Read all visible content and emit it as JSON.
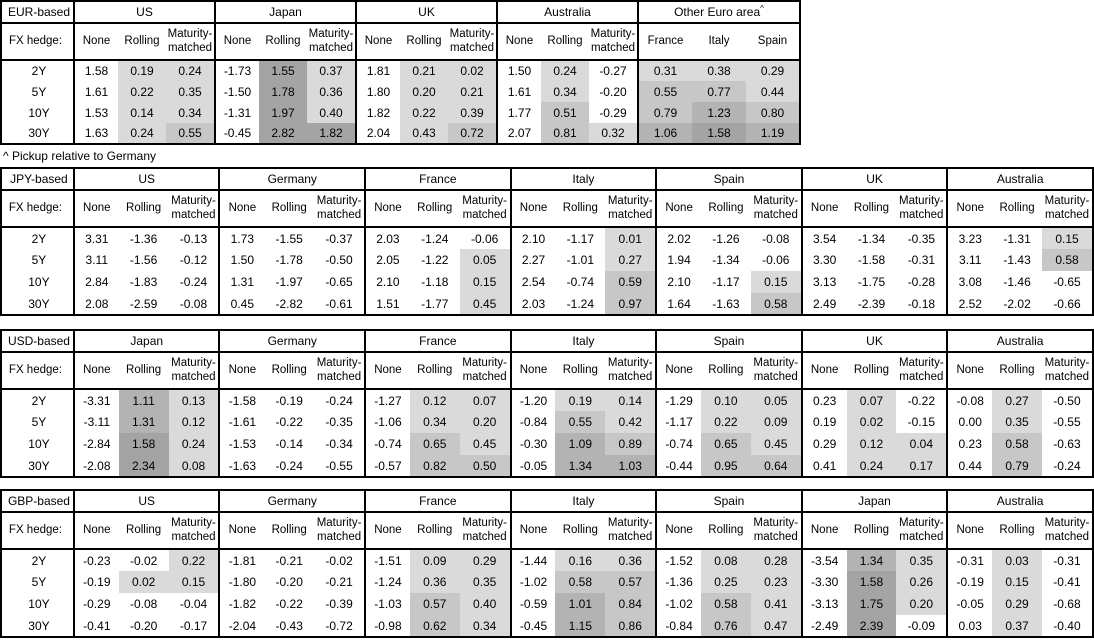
{
  "labels": {
    "fx_hedge": "FX hedge:",
    "hedge_cols": [
      "None",
      "Rolling",
      "Maturity-matched"
    ],
    "row_labels": [
      "2Y",
      "5Y",
      "10Y",
      "30Y"
    ],
    "footnote": "^ Pickup relative to Germany"
  },
  "shade_colors": {
    "l1": "#dadada",
    "l2": "#c7c7c7",
    "l3": "#b3b3b3",
    "l4": "#a4a4a4"
  },
  "shade_thresholds": [
    0,
    0.5,
    1.0,
    1.5
  ],
  "tables": [
    {
      "base": "EUR-based",
      "groups": [
        {
          "name": "US",
          "rows": [
            [
              "1.58",
              "0.19",
              "0.24"
            ],
            [
              "1.61",
              "0.22",
              "0.35"
            ],
            [
              "1.53",
              "0.14",
              "0.34"
            ],
            [
              "1.63",
              "0.24",
              "0.55"
            ]
          ]
        },
        {
          "name": "Japan",
          "rows": [
            [
              "-1.73",
              "1.55",
              "0.37"
            ],
            [
              "-1.50",
              "1.78",
              "0.36"
            ],
            [
              "-1.31",
              "1.97",
              "0.40"
            ],
            [
              "-0.45",
              "2.82",
              "1.82"
            ]
          ]
        },
        {
          "name": "UK",
          "rows": [
            [
              "1.81",
              "0.21",
              "0.02"
            ],
            [
              "1.80",
              "0.20",
              "0.21"
            ],
            [
              "1.82",
              "0.22",
              "0.39"
            ],
            [
              "2.04",
              "0.43",
              "0.72"
            ]
          ]
        },
        {
          "name": "Australia",
          "rows": [
            [
              "1.50",
              "0.24",
              "-0.27"
            ],
            [
              "1.61",
              "0.34",
              "-0.20"
            ],
            [
              "1.77",
              "0.51",
              "-0.29"
            ],
            [
              "2.07",
              "0.81",
              "0.32"
            ]
          ]
        },
        {
          "name": "Other Euro area",
          "footnote_mark": "^",
          "cols": [
            "France",
            "Italy",
            "Spain"
          ],
          "shade_all": true,
          "rows": [
            [
              "0.31",
              "0.38",
              "0.29"
            ],
            [
              "0.55",
              "0.77",
              "0.44"
            ],
            [
              "0.79",
              "1.23",
              "0.80"
            ],
            [
              "1.06",
              "1.58",
              "1.19"
            ]
          ]
        }
      ]
    },
    {
      "base": "JPY-based",
      "groups": [
        {
          "name": "US",
          "rows": [
            [
              "3.31",
              "-1.36",
              "-0.13"
            ],
            [
              "3.11",
              "-1.56",
              "-0.12"
            ],
            [
              "2.84",
              "-1.83",
              "-0.24"
            ],
            [
              "2.08",
              "-2.59",
              "-0.08"
            ]
          ]
        },
        {
          "name": "Germany",
          "rows": [
            [
              "1.73",
              "-1.55",
              "-0.37"
            ],
            [
              "1.50",
              "-1.78",
              "-0.50"
            ],
            [
              "1.31",
              "-1.97",
              "-0.65"
            ],
            [
              "0.45",
              "-2.82",
              "-0.61"
            ]
          ]
        },
        {
          "name": "France",
          "rows": [
            [
              "2.03",
              "-1.24",
              "-0.06"
            ],
            [
              "2.05",
              "-1.22",
              "0.05"
            ],
            [
              "2.10",
              "-1.18",
              "0.15"
            ],
            [
              "1.51",
              "-1.77",
              "0.45"
            ]
          ]
        },
        {
          "name": "Italy",
          "rows": [
            [
              "2.10",
              "-1.17",
              "0.01"
            ],
            [
              "2.27",
              "-1.01",
              "0.27"
            ],
            [
              "2.54",
              "-0.74",
              "0.59"
            ],
            [
              "2.03",
              "-1.24",
              "0.97"
            ]
          ]
        },
        {
          "name": "Spain",
          "rows": [
            [
              "2.02",
              "-1.26",
              "-0.08"
            ],
            [
              "1.94",
              "-1.34",
              "-0.06"
            ],
            [
              "2.10",
              "-1.17",
              "0.15"
            ],
            [
              "1.64",
              "-1.63",
              "0.58"
            ]
          ]
        },
        {
          "name": "UK",
          "rows": [
            [
              "3.54",
              "-1.34",
              "-0.35"
            ],
            [
              "3.30",
              "-1.58",
              "-0.31"
            ],
            [
              "3.13",
              "-1.75",
              "-0.28"
            ],
            [
              "2.49",
              "-2.39",
              "-0.18"
            ]
          ]
        },
        {
          "name": "Australia",
          "rows": [
            [
              "3.23",
              "-1.31",
              "0.15"
            ],
            [
              "3.11",
              "-1.43",
              "0.58"
            ],
            [
              "3.08",
              "-1.46",
              "-0.65"
            ],
            [
              "2.52",
              "-2.02",
              "-0.66"
            ]
          ]
        }
      ]
    },
    {
      "base": "USD-based",
      "groups": [
        {
          "name": "Japan",
          "rows": [
            [
              "-3.31",
              "1.11",
              "0.13"
            ],
            [
              "-3.11",
              "1.31",
              "0.12"
            ],
            [
              "-2.84",
              "1.58",
              "0.24"
            ],
            [
              "-2.08",
              "2.34",
              "0.08"
            ]
          ]
        },
        {
          "name": "Germany",
          "rows": [
            [
              "-1.58",
              "-0.19",
              "-0.24"
            ],
            [
              "-1.61",
              "-0.22",
              "-0.35"
            ],
            [
              "-1.53",
              "-0.14",
              "-0.34"
            ],
            [
              "-1.63",
              "-0.24",
              "-0.55"
            ]
          ]
        },
        {
          "name": "France",
          "rows": [
            [
              "-1.27",
              "0.12",
              "0.07"
            ],
            [
              "-1.06",
              "0.34",
              "0.20"
            ],
            [
              "-0.74",
              "0.65",
              "0.45"
            ],
            [
              "-0.57",
              "0.82",
              "0.50"
            ]
          ]
        },
        {
          "name": "Italy",
          "rows": [
            [
              "-1.20",
              "0.19",
              "0.14"
            ],
            [
              "-0.84",
              "0.55",
              "0.42"
            ],
            [
              "-0.30",
              "1.09",
              "0.89"
            ],
            [
              "-0.05",
              "1.34",
              "1.03"
            ]
          ]
        },
        {
          "name": "Spain",
          "rows": [
            [
              "-1.29",
              "0.10",
              "0.05"
            ],
            [
              "-1.17",
              "0.22",
              "0.09"
            ],
            [
              "-0.74",
              "0.65",
              "0.45"
            ],
            [
              "-0.44",
              "0.95",
              "0.64"
            ]
          ]
        },
        {
          "name": "UK",
          "rows": [
            [
              "0.23",
              "0.07",
              "-0.22"
            ],
            [
              "0.19",
              "0.02",
              "-0.15"
            ],
            [
              "0.29",
              "0.12",
              "0.04"
            ],
            [
              "0.41",
              "0.24",
              "0.17"
            ]
          ]
        },
        {
          "name": "Australia",
          "rows": [
            [
              "-0.08",
              "0.27",
              "-0.50"
            ],
            [
              "0.00",
              "0.35",
              "-0.55"
            ],
            [
              "0.23",
              "0.58",
              "-0.63"
            ],
            [
              "0.44",
              "0.79",
              "-0.24"
            ]
          ]
        }
      ]
    },
    {
      "base": "GBP-based",
      "groups": [
        {
          "name": "US",
          "rows": [
            [
              "-0.23",
              "-0.02",
              "0.22"
            ],
            [
              "-0.19",
              "0.02",
              "0.15"
            ],
            [
              "-0.29",
              "-0.08",
              "-0.04"
            ],
            [
              "-0.41",
              "-0.20",
              "-0.17"
            ]
          ]
        },
        {
          "name": "Germany",
          "rows": [
            [
              "-1.81",
              "-0.21",
              "-0.02"
            ],
            [
              "-1.80",
              "-0.20",
              "-0.21"
            ],
            [
              "-1.82",
              "-0.22",
              "-0.39"
            ],
            [
              "-2.04",
              "-0.43",
              "-0.72"
            ]
          ]
        },
        {
          "name": "France",
          "rows": [
            [
              "-1.51",
              "0.09",
              "0.29"
            ],
            [
              "-1.24",
              "0.36",
              "0.35"
            ],
            [
              "-1.03",
              "0.57",
              "0.40"
            ],
            [
              "-0.98",
              "0.62",
              "0.34"
            ]
          ]
        },
        {
          "name": "Italy",
          "rows": [
            [
              "-1.44",
              "0.16",
              "0.36"
            ],
            [
              "-1.02",
              "0.58",
              "0.57"
            ],
            [
              "-0.59",
              "1.01",
              "0.84"
            ],
            [
              "-0.45",
              "1.15",
              "0.86"
            ]
          ]
        },
        {
          "name": "Spain",
          "rows": [
            [
              "-1.52",
              "0.08",
              "0.28"
            ],
            [
              "-1.36",
              "0.25",
              "0.23"
            ],
            [
              "-1.02",
              "0.58",
              "0.41"
            ],
            [
              "-0.84",
              "0.76",
              "0.47"
            ]
          ]
        },
        {
          "name": "Japan",
          "rows": [
            [
              "-3.54",
              "1.34",
              "0.35"
            ],
            [
              "-3.30",
              "1.58",
              "0.26"
            ],
            [
              "-3.13",
              "1.75",
              "0.20"
            ],
            [
              "-2.49",
              "2.39",
              "-0.09"
            ]
          ]
        },
        {
          "name": "Australia",
          "rows": [
            [
              "-0.31",
              "0.03",
              "-0.31"
            ],
            [
              "-0.19",
              "0.15",
              "-0.41"
            ],
            [
              "-0.05",
              "0.29",
              "-0.68"
            ],
            [
              "0.03",
              "0.37",
              "-0.40"
            ]
          ]
        }
      ]
    }
  ]
}
